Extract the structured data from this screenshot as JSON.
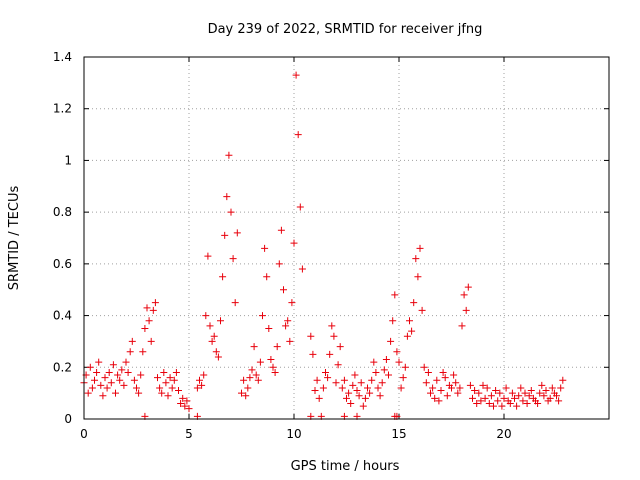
{
  "chart_data": {
    "type": "scatter",
    "title": "Day 239 of 2022, SRMTID for receiver jfng",
    "xlabel": "GPS time / hours",
    "ylabel": "SRMTID / TECUs",
    "xlim": [
      0,
      25
    ],
    "ylim": [
      0,
      1.4
    ],
    "grid": true,
    "marker": "+",
    "colors": {
      "series": "#e8000b",
      "grid": "#a0a0a0",
      "axis": "#000000"
    },
    "x_ticks": [
      0,
      5,
      10,
      15,
      20
    ],
    "x_tick_labels": [
      "0",
      "5",
      "10",
      "15",
      "20"
    ],
    "y_ticks": [
      0,
      0.2,
      0.4,
      0.6,
      0.8,
      1,
      1.2,
      1.4
    ],
    "y_tick_labels": [
      "0",
      "0.2",
      "0.4",
      "0.6",
      "0.8",
      "1",
      "1.2",
      "1.4"
    ],
    "series": [
      {
        "name": "SRMTID",
        "x": [
          0.0,
          0.1,
          0.2,
          0.3,
          0.4,
          0.5,
          0.6,
          0.7,
          0.8,
          0.9,
          1.0,
          1.1,
          1.2,
          1.3,
          1.4,
          1.5,
          1.6,
          1.7,
          1.8,
          1.9,
          2.0,
          2.1,
          2.2,
          2.3,
          2.4,
          2.5,
          2.6,
          2.7,
          2.8,
          2.9,
          3.0,
          3.1,
          3.2,
          3.3,
          3.4,
          3.5,
          3.6,
          3.7,
          3.8,
          3.9,
          4.0,
          4.1,
          4.2,
          4.3,
          4.4,
          4.5,
          4.6,
          4.7,
          4.8,
          4.9,
          5.0,
          5.4,
          5.5,
          5.6,
          5.7,
          5.8,
          5.9,
          6.0,
          6.1,
          6.2,
          6.3,
          6.4,
          6.5,
          6.6,
          6.7,
          6.8,
          6.9,
          7.0,
          7.1,
          7.2,
          7.3,
          7.5,
          7.6,
          7.7,
          7.8,
          7.9,
          8.0,
          8.1,
          8.2,
          8.3,
          8.4,
          8.5,
          8.6,
          8.7,
          8.8,
          8.9,
          9.0,
          9.1,
          9.2,
          9.3,
          9.4,
          9.5,
          9.6,
          9.7,
          9.8,
          9.9,
          10.0,
          10.1,
          10.2,
          10.3,
          10.4,
          10.8,
          10.9,
          11.0,
          11.1,
          11.2,
          11.4,
          11.5,
          11.6,
          11.7,
          11.8,
          11.9,
          12.0,
          12.1,
          12.2,
          12.3,
          12.4,
          12.5,
          12.6,
          12.7,
          12.8,
          12.9,
          13.0,
          13.1,
          13.2,
          13.3,
          13.4,
          13.5,
          13.6,
          13.7,
          13.8,
          13.9,
          14.0,
          14.1,
          14.2,
          14.3,
          14.4,
          14.5,
          14.6,
          14.7,
          14.8,
          14.9,
          15.0,
          15.1,
          15.2,
          15.3,
          15.4,
          15.5,
          15.6,
          15.7,
          15.8,
          15.9,
          16.0,
          16.1,
          16.2,
          16.3,
          16.4,
          16.5,
          16.6,
          16.7,
          16.8,
          16.9,
          17.0,
          17.1,
          17.2,
          17.3,
          17.4,
          17.5,
          17.6,
          17.7,
          17.8,
          17.9,
          18.0,
          18.1,
          18.2,
          18.3,
          18.4,
          18.5,
          18.6,
          18.7,
          18.8,
          18.9,
          19.0,
          19.1,
          19.2,
          19.3,
          19.4,
          19.5,
          19.6,
          19.7,
          19.8,
          19.9,
          20.0,
          20.1,
          20.2,
          20.3,
          20.4,
          20.5,
          20.6,
          20.7,
          20.8,
          20.9,
          21.0,
          21.1,
          21.2,
          21.3,
          21.4,
          21.5,
          21.6,
          21.7,
          21.8,
          21.9,
          22.0,
          22.1,
          22.2,
          22.3,
          22.4,
          22.5,
          22.6,
          22.7,
          22.8,
          2.9,
          5.4,
          10.8,
          11.3,
          12.4,
          13.0,
          14.8,
          14.9
        ],
        "y": [
          0.14,
          0.17,
          0.1,
          0.2,
          0.12,
          0.15,
          0.18,
          0.22,
          0.13,
          0.09,
          0.16,
          0.12,
          0.18,
          0.14,
          0.21,
          0.1,
          0.17,
          0.15,
          0.19,
          0.13,
          0.22,
          0.18,
          0.26,
          0.3,
          0.15,
          0.12,
          0.1,
          0.17,
          0.26,
          0.35,
          0.43,
          0.38,
          0.3,
          0.42,
          0.45,
          0.16,
          0.12,
          0.1,
          0.18,
          0.14,
          0.09,
          0.16,
          0.12,
          0.15,
          0.18,
          0.11,
          0.06,
          0.08,
          0.05,
          0.07,
          0.04,
          0.12,
          0.15,
          0.13,
          0.17,
          0.4,
          0.63,
          0.36,
          0.3,
          0.32,
          0.26,
          0.24,
          0.38,
          0.55,
          0.71,
          0.86,
          1.02,
          0.8,
          0.62,
          0.45,
          0.72,
          0.1,
          0.15,
          0.09,
          0.12,
          0.16,
          0.19,
          0.28,
          0.17,
          0.15,
          0.22,
          0.4,
          0.66,
          0.55,
          0.35,
          0.23,
          0.2,
          0.18,
          0.28,
          0.6,
          0.73,
          0.5,
          0.36,
          0.38,
          0.3,
          0.45,
          0.68,
          1.33,
          1.1,
          0.82,
          0.58,
          0.32,
          0.25,
          0.11,
          0.15,
          0.08,
          0.12,
          0.18,
          0.16,
          0.25,
          0.36,
          0.32,
          0.14,
          0.21,
          0.28,
          0.12,
          0.15,
          0.08,
          0.1,
          0.06,
          0.13,
          0.17,
          0.11,
          0.09,
          0.14,
          0.05,
          0.08,
          0.12,
          0.1,
          0.15,
          0.22,
          0.18,
          0.12,
          0.09,
          0.14,
          0.19,
          0.23,
          0.17,
          0.3,
          0.38,
          0.48,
          0.26,
          0.22,
          0.12,
          0.16,
          0.2,
          0.32,
          0.38,
          0.34,
          0.45,
          0.62,
          0.55,
          0.66,
          0.42,
          0.2,
          0.14,
          0.18,
          0.1,
          0.12,
          0.08,
          0.15,
          0.07,
          0.11,
          0.18,
          0.16,
          0.09,
          0.13,
          0.12,
          0.17,
          0.14,
          0.1,
          0.12,
          0.36,
          0.48,
          0.42,
          0.51,
          0.13,
          0.08,
          0.11,
          0.06,
          0.1,
          0.07,
          0.13,
          0.08,
          0.12,
          0.06,
          0.09,
          0.05,
          0.11,
          0.07,
          0.1,
          0.05,
          0.08,
          0.12,
          0.07,
          0.06,
          0.1,
          0.08,
          0.05,
          0.09,
          0.12,
          0.07,
          0.1,
          0.06,
          0.09,
          0.11,
          0.08,
          0.07,
          0.06,
          0.1,
          0.13,
          0.09,
          0.11,
          0.07,
          0.08,
          0.12,
          0.1,
          0.09,
          0.07,
          0.12,
          0.15,
          0.01,
          0.01,
          0.01,
          0.01,
          0.01,
          0.01,
          0.01,
          0.01
        ]
      }
    ]
  }
}
